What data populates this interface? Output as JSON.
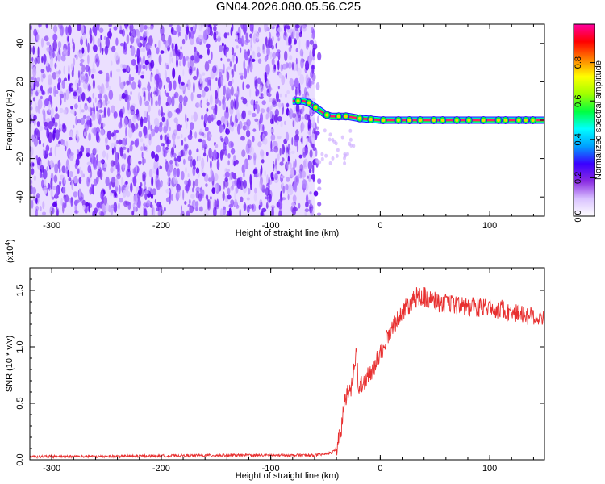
{
  "title": "GN04.2026.080.05.56.C25",
  "chart_data": [
    {
      "type": "heatmap",
      "xlabel": "Height of straight line (km)",
      "ylabel": "Frequency (Hz)",
      "xlim": [
        -320,
        150
      ],
      "ylim": [
        -50,
        50
      ],
      "xticks": [
        -300,
        -200,
        -100,
        0,
        100
      ],
      "yticks": [
        -40,
        -20,
        0,
        20,
        40
      ],
      "noise_region_x": [
        -320,
        -60
      ],
      "trace": {
        "x": [
          -80,
          -70,
          -65,
          -60,
          -55,
          -50,
          -45,
          -40,
          -30,
          -20,
          -10,
          0,
          10,
          20,
          50,
          100,
          150
        ],
        "y": [
          10,
          10,
          9,
          7,
          5,
          3,
          2,
          2,
          2,
          1,
          0.5,
          0,
          0,
          0,
          0,
          0,
          0
        ]
      },
      "colorbar": {
        "label": "Normalized spectral amplitude",
        "range": [
          0,
          1
        ],
        "ticks": [
          "0.0",
          "0.2",
          "0.4",
          "0.6",
          "0.8"
        ],
        "colors": [
          "#ffffff",
          "#d9c2ff",
          "#8a2be2",
          "#3a00ff",
          "#00a0ff",
          "#00ffff",
          "#00ff40",
          "#a0ff00",
          "#ffff00",
          "#ff8000",
          "#ff0000",
          "#ff00a0"
        ]
      }
    },
    {
      "type": "line",
      "xlabel": "Height of straight line (km)",
      "ylabel": "SNR (10 * v/v)",
      "y_multiplier": "(x10",
      "y_multiplier_exp": "4",
      "y_multiplier_close": ")",
      "xlim": [
        -320,
        150
      ],
      "ylim": [
        0,
        1.7
      ],
      "xticks": [
        -300,
        -200,
        -100,
        0,
        100
      ],
      "yticks": [
        "0.0",
        "0.5",
        "1.0",
        "1.5"
      ],
      "color": "#e83030",
      "series": [
        {
          "x": [
            -320,
            -250,
            -150,
            -100,
            -60,
            -45,
            -40,
            -35,
            -33,
            -30,
            -25,
            -22,
            -20,
            -15,
            -10,
            -5,
            0,
            5,
            10,
            15,
            20,
            25,
            30,
            35,
            40,
            45,
            50,
            60,
            70,
            80,
            90,
            100,
            110,
            120,
            130,
            140,
            150
          ],
          "values": [
            0.03,
            0.03,
            0.04,
            0.04,
            0.04,
            0.06,
            0.1,
            0.3,
            0.5,
            0.6,
            0.68,
            1.0,
            0.65,
            0.7,
            0.75,
            0.85,
            0.95,
            1.05,
            1.15,
            1.25,
            1.3,
            1.37,
            1.42,
            1.45,
            1.44,
            1.42,
            1.4,
            1.38,
            1.37,
            1.36,
            1.35,
            1.35,
            1.33,
            1.31,
            1.29,
            1.27,
            1.25
          ]
        }
      ]
    }
  ]
}
